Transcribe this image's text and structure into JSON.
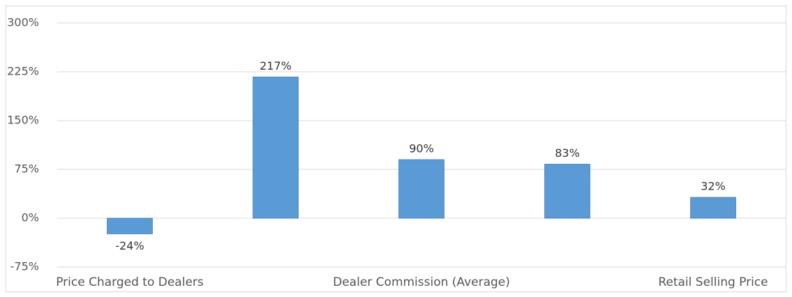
{
  "chart_data": {
    "type": "bar",
    "categories": [
      "Price Charged to Dealers",
      null,
      "Dealer Commission (Average)",
      null,
      "Retail Selling Price"
    ],
    "values": [
      -24,
      217,
      90,
      83,
      32
    ],
    "value_labels": [
      "-24%",
      "217%",
      "90%",
      "83%",
      "32%"
    ],
    "color": "#5b9bd5",
    "ylim": [
      -75,
      300
    ],
    "yticks": [
      {
        "value": -75,
        "label": "-75%"
      },
      {
        "value": 0,
        "label": "0%"
      },
      {
        "value": 75,
        "label": "75%"
      },
      {
        "value": 150,
        "label": "150%"
      },
      {
        "value": 225,
        "label": "225%"
      },
      {
        "value": 300,
        "label": "300%"
      }
    ],
    "grid": true
  }
}
